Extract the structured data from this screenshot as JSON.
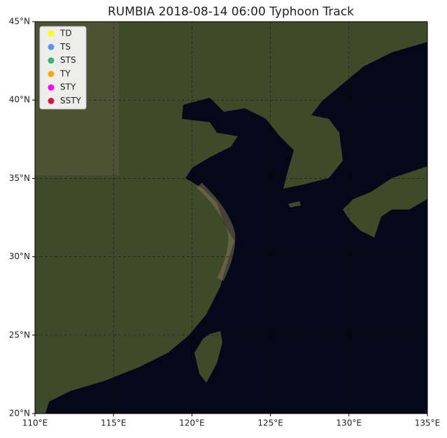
{
  "chart_data": {
    "type": "map",
    "title": "RUMBIA 2018-08-14 06:00 Typhoon Track",
    "xlim": [
      110,
      135
    ],
    "ylim": [
      20,
      45
    ],
    "xticks": [
      {
        "value": 110,
        "label": "110°E"
      },
      {
        "value": 115,
        "label": "115°E"
      },
      {
        "value": 120,
        "label": "120°E"
      },
      {
        "value": 125,
        "label": "125°E"
      },
      {
        "value": 130,
        "label": "130°E"
      },
      {
        "value": 135,
        "label": "135°E"
      }
    ],
    "yticks": [
      {
        "value": 20,
        "label": "20°N"
      },
      {
        "value": 25,
        "label": "25°N"
      },
      {
        "value": 30,
        "label": "30°N"
      },
      {
        "value": 35,
        "label": "35°N"
      },
      {
        "value": 40,
        "label": "40°N"
      },
      {
        "value": 45,
        "label": "45°N"
      }
    ],
    "grid": true,
    "legend": "upper left",
    "series": [
      {
        "name": "TD",
        "color": "#ffff00"
      },
      {
        "name": "TS",
        "color": "#6495ed"
      },
      {
        "name": "STS",
        "color": "#3cb371"
      },
      {
        "name": "TY",
        "color": "#ffa500"
      },
      {
        "name": "STY",
        "color": "#ff00ff"
      },
      {
        "name": "SSTY",
        "color": "#dc143c"
      }
    ]
  }
}
